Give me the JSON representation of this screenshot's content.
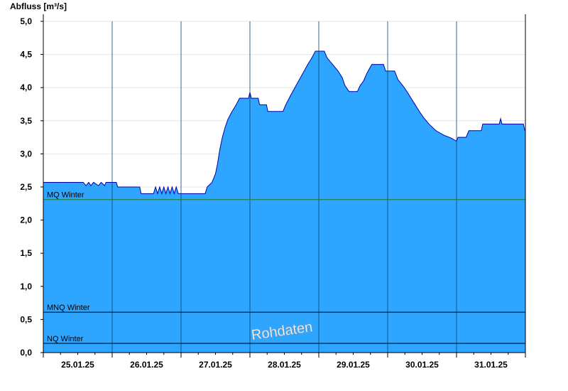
{
  "chart_data": {
    "type": "area",
    "ylabel": "Abfluss [m³/s]",
    "ylim": [
      0,
      5.0
    ],
    "yticks": [
      "0,0",
      "0,5",
      "1,0",
      "1,5",
      "2,0",
      "2,5",
      "3,0",
      "3,5",
      "4,0",
      "4,5",
      "5,0"
    ],
    "xticks": [
      "25.01.25",
      "26.01.25",
      "27.01.25",
      "28.01.25",
      "29.01.25",
      "30.01.25",
      "31.01.25"
    ],
    "x_range_days": [
      0,
      7
    ],
    "grid": "horizontal",
    "fill_color": "#2ea6ff",
    "line_color": "#0000aa",
    "series": [
      {
        "values": [
          [
            0.0,
            2.57
          ],
          [
            0.58,
            2.57
          ],
          [
            0.62,
            2.52
          ],
          [
            0.66,
            2.57
          ],
          [
            0.69,
            2.52
          ],
          [
            0.73,
            2.57
          ],
          [
            0.8,
            2.52
          ],
          [
            0.84,
            2.57
          ],
          [
            0.89,
            2.52
          ],
          [
            0.91,
            2.57
          ],
          [
            1.06,
            2.57
          ],
          [
            1.08,
            2.5
          ],
          [
            1.4,
            2.5
          ],
          [
            1.42,
            2.4
          ],
          [
            1.6,
            2.4
          ],
          [
            1.63,
            2.5
          ],
          [
            1.66,
            2.4
          ],
          [
            1.69,
            2.5
          ],
          [
            1.72,
            2.4
          ],
          [
            1.75,
            2.5
          ],
          [
            1.78,
            2.4
          ],
          [
            1.81,
            2.5
          ],
          [
            1.84,
            2.4
          ],
          [
            1.87,
            2.5
          ],
          [
            1.9,
            2.4
          ],
          [
            1.93,
            2.5
          ],
          [
            1.96,
            2.4
          ],
          [
            2.35,
            2.4
          ],
          [
            2.38,
            2.5
          ],
          [
            2.45,
            2.57
          ],
          [
            2.5,
            2.7
          ],
          [
            2.53,
            2.85
          ],
          [
            2.56,
            3.05
          ],
          [
            2.6,
            3.25
          ],
          [
            2.64,
            3.4
          ],
          [
            2.68,
            3.52
          ],
          [
            2.73,
            3.62
          ],
          [
            2.8,
            3.74
          ],
          [
            2.85,
            3.84
          ],
          [
            2.98,
            3.84
          ],
          [
            3.0,
            3.93
          ],
          [
            3.02,
            3.84
          ],
          [
            3.12,
            3.84
          ],
          [
            3.14,
            3.74
          ],
          [
            3.24,
            3.74
          ],
          [
            3.26,
            3.64
          ],
          [
            3.48,
            3.64
          ],
          [
            3.52,
            3.74
          ],
          [
            3.6,
            3.9
          ],
          [
            3.68,
            4.05
          ],
          [
            3.76,
            4.2
          ],
          [
            3.84,
            4.35
          ],
          [
            3.9,
            4.45
          ],
          [
            3.95,
            4.55
          ],
          [
            4.08,
            4.55
          ],
          [
            4.12,
            4.45
          ],
          [
            4.2,
            4.35
          ],
          [
            4.28,
            4.25
          ],
          [
            4.34,
            4.15
          ],
          [
            4.38,
            4.03
          ],
          [
            4.44,
            3.94
          ],
          [
            4.56,
            3.94
          ],
          [
            4.6,
            4.03
          ],
          [
            4.65,
            4.1
          ],
          [
            4.7,
            4.22
          ],
          [
            4.77,
            4.35
          ],
          [
            4.94,
            4.35
          ],
          [
            4.97,
            4.25
          ],
          [
            5.1,
            4.25
          ],
          [
            5.15,
            4.12
          ],
          [
            5.22,
            4.03
          ],
          [
            5.28,
            3.94
          ],
          [
            5.34,
            3.84
          ],
          [
            5.4,
            3.74
          ],
          [
            5.46,
            3.64
          ],
          [
            5.52,
            3.55
          ],
          [
            5.6,
            3.45
          ],
          [
            5.7,
            3.35
          ],
          [
            5.82,
            3.28
          ],
          [
            5.92,
            3.24
          ],
          [
            6.0,
            3.19
          ],
          [
            6.02,
            3.25
          ],
          [
            6.14,
            3.25
          ],
          [
            6.18,
            3.35
          ],
          [
            6.36,
            3.35
          ],
          [
            6.38,
            3.45
          ],
          [
            6.62,
            3.45
          ],
          [
            6.64,
            3.53
          ],
          [
            6.66,
            3.45
          ],
          [
            6.97,
            3.45
          ],
          [
            6.99,
            3.36
          ],
          [
            7.0,
            3.36
          ]
        ]
      }
    ],
    "reference_lines": [
      {
        "label": "MQ Winter",
        "value": 2.31,
        "color": "#1e7b1e"
      },
      {
        "label": "MNQ Winter",
        "value": 0.61,
        "color": "#000000"
      },
      {
        "label": "NQ Winter",
        "value": 0.14,
        "color": "#000000"
      }
    ],
    "watermark": "Rohdaten"
  }
}
